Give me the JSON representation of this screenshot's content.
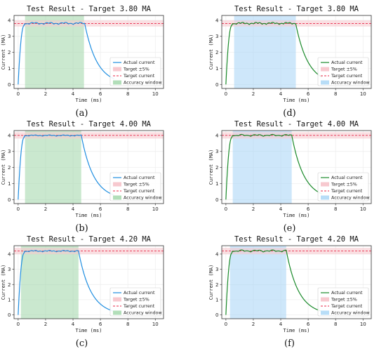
{
  "colors": {
    "blue_line": "#1f8ee0",
    "green_line": "#1a8a2a",
    "band": "#f7c9cf",
    "target": "#e8284a",
    "window_green": "#9fd6a8",
    "window_blue": "#a6d4f5"
  },
  "chart_data": [
    {
      "type": "line",
      "panel_label": "(a)",
      "title": "Test Result - Target 3.80 MA",
      "xlabel": "Time (ms)",
      "ylabel": "Current (MA)",
      "xticks": [
        "0",
        "2",
        "4",
        "6",
        "8",
        "10"
      ],
      "yticks": [
        "0",
        "1",
        "2",
        "3",
        "4"
      ],
      "xlim": [
        -0.3,
        10.6
      ],
      "ylim": [
        -0.25,
        4.3
      ],
      "target": 3.8,
      "band_pct": 5,
      "window": [
        0.5,
        4.8
      ],
      "fall_start": 4.85,
      "ripple_amp": 0.1,
      "ripple_freq": 2.8,
      "line_color": "blue",
      "window_color": "green",
      "series": [
        {
          "name": "Actual current"
        }
      ],
      "legend": [
        "Actual current",
        "Target ±5%",
        "Target current",
        "Accuracy window"
      ]
    },
    {
      "type": "line",
      "panel_label": "(d)",
      "title": "Test Result - Target 3.80 MA",
      "xlabel": "Time (ms)",
      "ylabel": "Current (MA)",
      "xticks": [
        "0",
        "2",
        "4",
        "6",
        "8",
        "10"
      ],
      "yticks": [
        "0",
        "1",
        "2",
        "3",
        "4"
      ],
      "xlim": [
        -0.3,
        10.6
      ],
      "ylim": [
        -0.25,
        4.3
      ],
      "target": 3.8,
      "band_pct": 5,
      "window": [
        0.6,
        5.1
      ],
      "fall_start": 5.1,
      "ripple_amp": 0.1,
      "ripple_freq": 3.2,
      "line_color": "green",
      "window_color": "blue",
      "series": [
        {
          "name": "Actual current"
        }
      ],
      "legend": [
        "Actual current",
        "Target ±5%",
        "Target current",
        "Accuracy window"
      ]
    },
    {
      "type": "line",
      "panel_label": "(b)",
      "title": "Test Result - Target 4.00 MA",
      "xlabel": "Time (ms)",
      "ylabel": "Current (MA)",
      "xticks": [
        "0",
        "2",
        "4",
        "6",
        "8",
        "10"
      ],
      "yticks": [
        "0",
        "1",
        "2",
        "3",
        "4"
      ],
      "xlim": [
        -0.3,
        10.6
      ],
      "ylim": [
        -0.25,
        4.3
      ],
      "target": 4.0,
      "band_pct": 5,
      "window": [
        0.5,
        4.6
      ],
      "fall_start": 4.6,
      "ripple_amp": 0.06,
      "ripple_freq": 3.0,
      "line_color": "blue",
      "window_color": "green",
      "series": [
        {
          "name": "Actual current"
        }
      ],
      "legend": [
        "Actual current",
        "Target ±5%",
        "Target current",
        "Accuracy window"
      ]
    },
    {
      "type": "line",
      "panel_label": "(e)",
      "title": "Test Result - Target 4.00 MA",
      "xlabel": "Time (ms)",
      "ylabel": "Current (MA)",
      "xticks": [
        "0",
        "2",
        "4",
        "6",
        "8",
        "10"
      ],
      "yticks": [
        "0",
        "1",
        "2",
        "3",
        "4"
      ],
      "xlim": [
        -0.3,
        10.6
      ],
      "ylim": [
        -0.25,
        4.3
      ],
      "target": 4.0,
      "band_pct": 5,
      "window": [
        0.5,
        4.8
      ],
      "fall_start": 4.8,
      "ripple_amp": 0.09,
      "ripple_freq": 2.2,
      "line_color": "green",
      "window_color": "blue",
      "series": [
        {
          "name": "Actual current"
        }
      ],
      "legend": [
        "Actual current",
        "Target ±5%",
        "Target current",
        "Accuracy window"
      ]
    },
    {
      "type": "line",
      "panel_label": "(c)",
      "title": "Test Result - Target 4.20 MA",
      "xlabel": "Time (ms)",
      "ylabel": "Current (MA)",
      "xticks": [
        "0",
        "2",
        "4",
        "6",
        "8",
        "10"
      ],
      "yticks": [
        "0",
        "1",
        "2",
        "3",
        "4"
      ],
      "xlim": [
        -0.3,
        10.6
      ],
      "ylim": [
        -0.25,
        4.55
      ],
      "target": 4.2,
      "band_pct": 5,
      "window": [
        0.2,
        4.4
      ],
      "fall_start": 4.4,
      "ripple_amp": 0.07,
      "ripple_freq": 3.0,
      "line_color": "blue",
      "window_color": "green",
      "series": [
        {
          "name": "Actual current"
        }
      ],
      "legend": [
        "Actual current",
        "Target ±5%",
        "Target current",
        "Accuracy window"
      ]
    },
    {
      "type": "line",
      "panel_label": "(f)",
      "title": "Test Result - Target 4.20 MA",
      "xlabel": "Time (ms)",
      "ylabel": "Current (MA)",
      "xticks": [
        "0",
        "2",
        "4",
        "6",
        "8",
        "10"
      ],
      "yticks": [
        "0",
        "1",
        "2",
        "3",
        "4"
      ],
      "xlim": [
        -0.3,
        10.6
      ],
      "ylim": [
        -0.25,
        4.55
      ],
      "target": 4.2,
      "band_pct": 5,
      "window": [
        0.3,
        4.4
      ],
      "fall_start": 4.4,
      "ripple_amp": 0.1,
      "ripple_freq": 2.2,
      "line_color": "green",
      "window_color": "blue",
      "series": [
        {
          "name": "Actual current"
        }
      ],
      "legend": [
        "Actual current",
        "Target ±5%",
        "Target current",
        "Accuracy window"
      ]
    }
  ]
}
